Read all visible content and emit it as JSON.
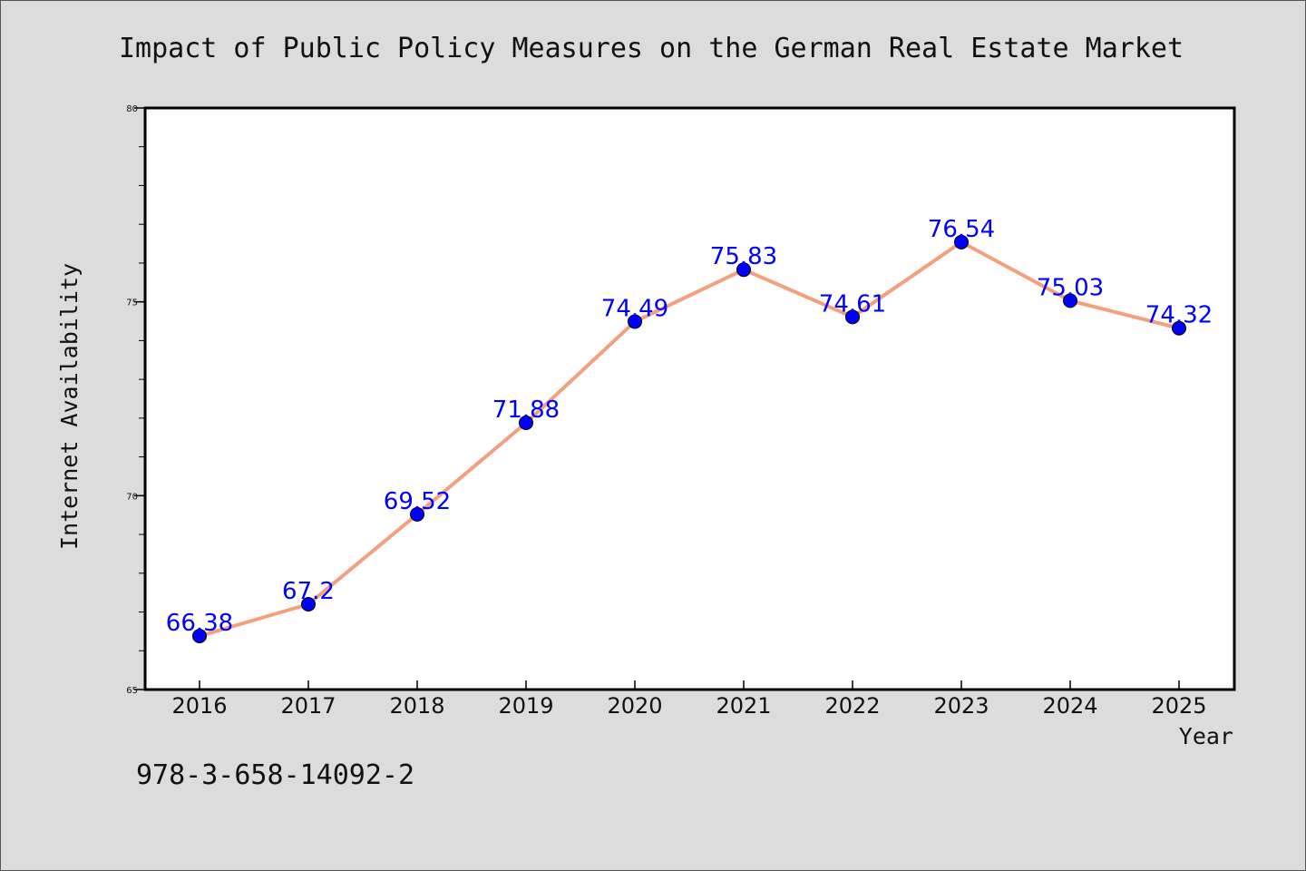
{
  "chart_data": {
    "type": "line",
    "title": "Impact of Public Policy Measures on the German Real Estate Market",
    "xlabel": "Year",
    "ylabel": "Internet Availability",
    "categories": [
      "2016",
      "2017",
      "2018",
      "2019",
      "2020",
      "2021",
      "2022",
      "2023",
      "2024",
      "2025"
    ],
    "values": [
      66.38,
      67.2,
      69.52,
      71.88,
      74.49,
      75.83,
      74.61,
      76.54,
      75.03,
      74.32
    ],
    "data_labels": [
      "66.38",
      "67.2",
      "69.52",
      "71.88",
      "74.49",
      "75.83",
      "74.61",
      "76.54",
      "75.03",
      "74.32"
    ],
    "ylim": [
      65,
      80
    ],
    "yticks": [
      "65",
      "70",
      "75",
      "80"
    ],
    "grid": false,
    "legend": "none",
    "line_color": "#f4a07e",
    "marker_color": "#0000ff",
    "label_color": "#0000ff",
    "background_color": "#dcdcdc",
    "plot_background": "#ffffff"
  },
  "footer": {
    "isbn": "978-3-658-14092-2"
  }
}
